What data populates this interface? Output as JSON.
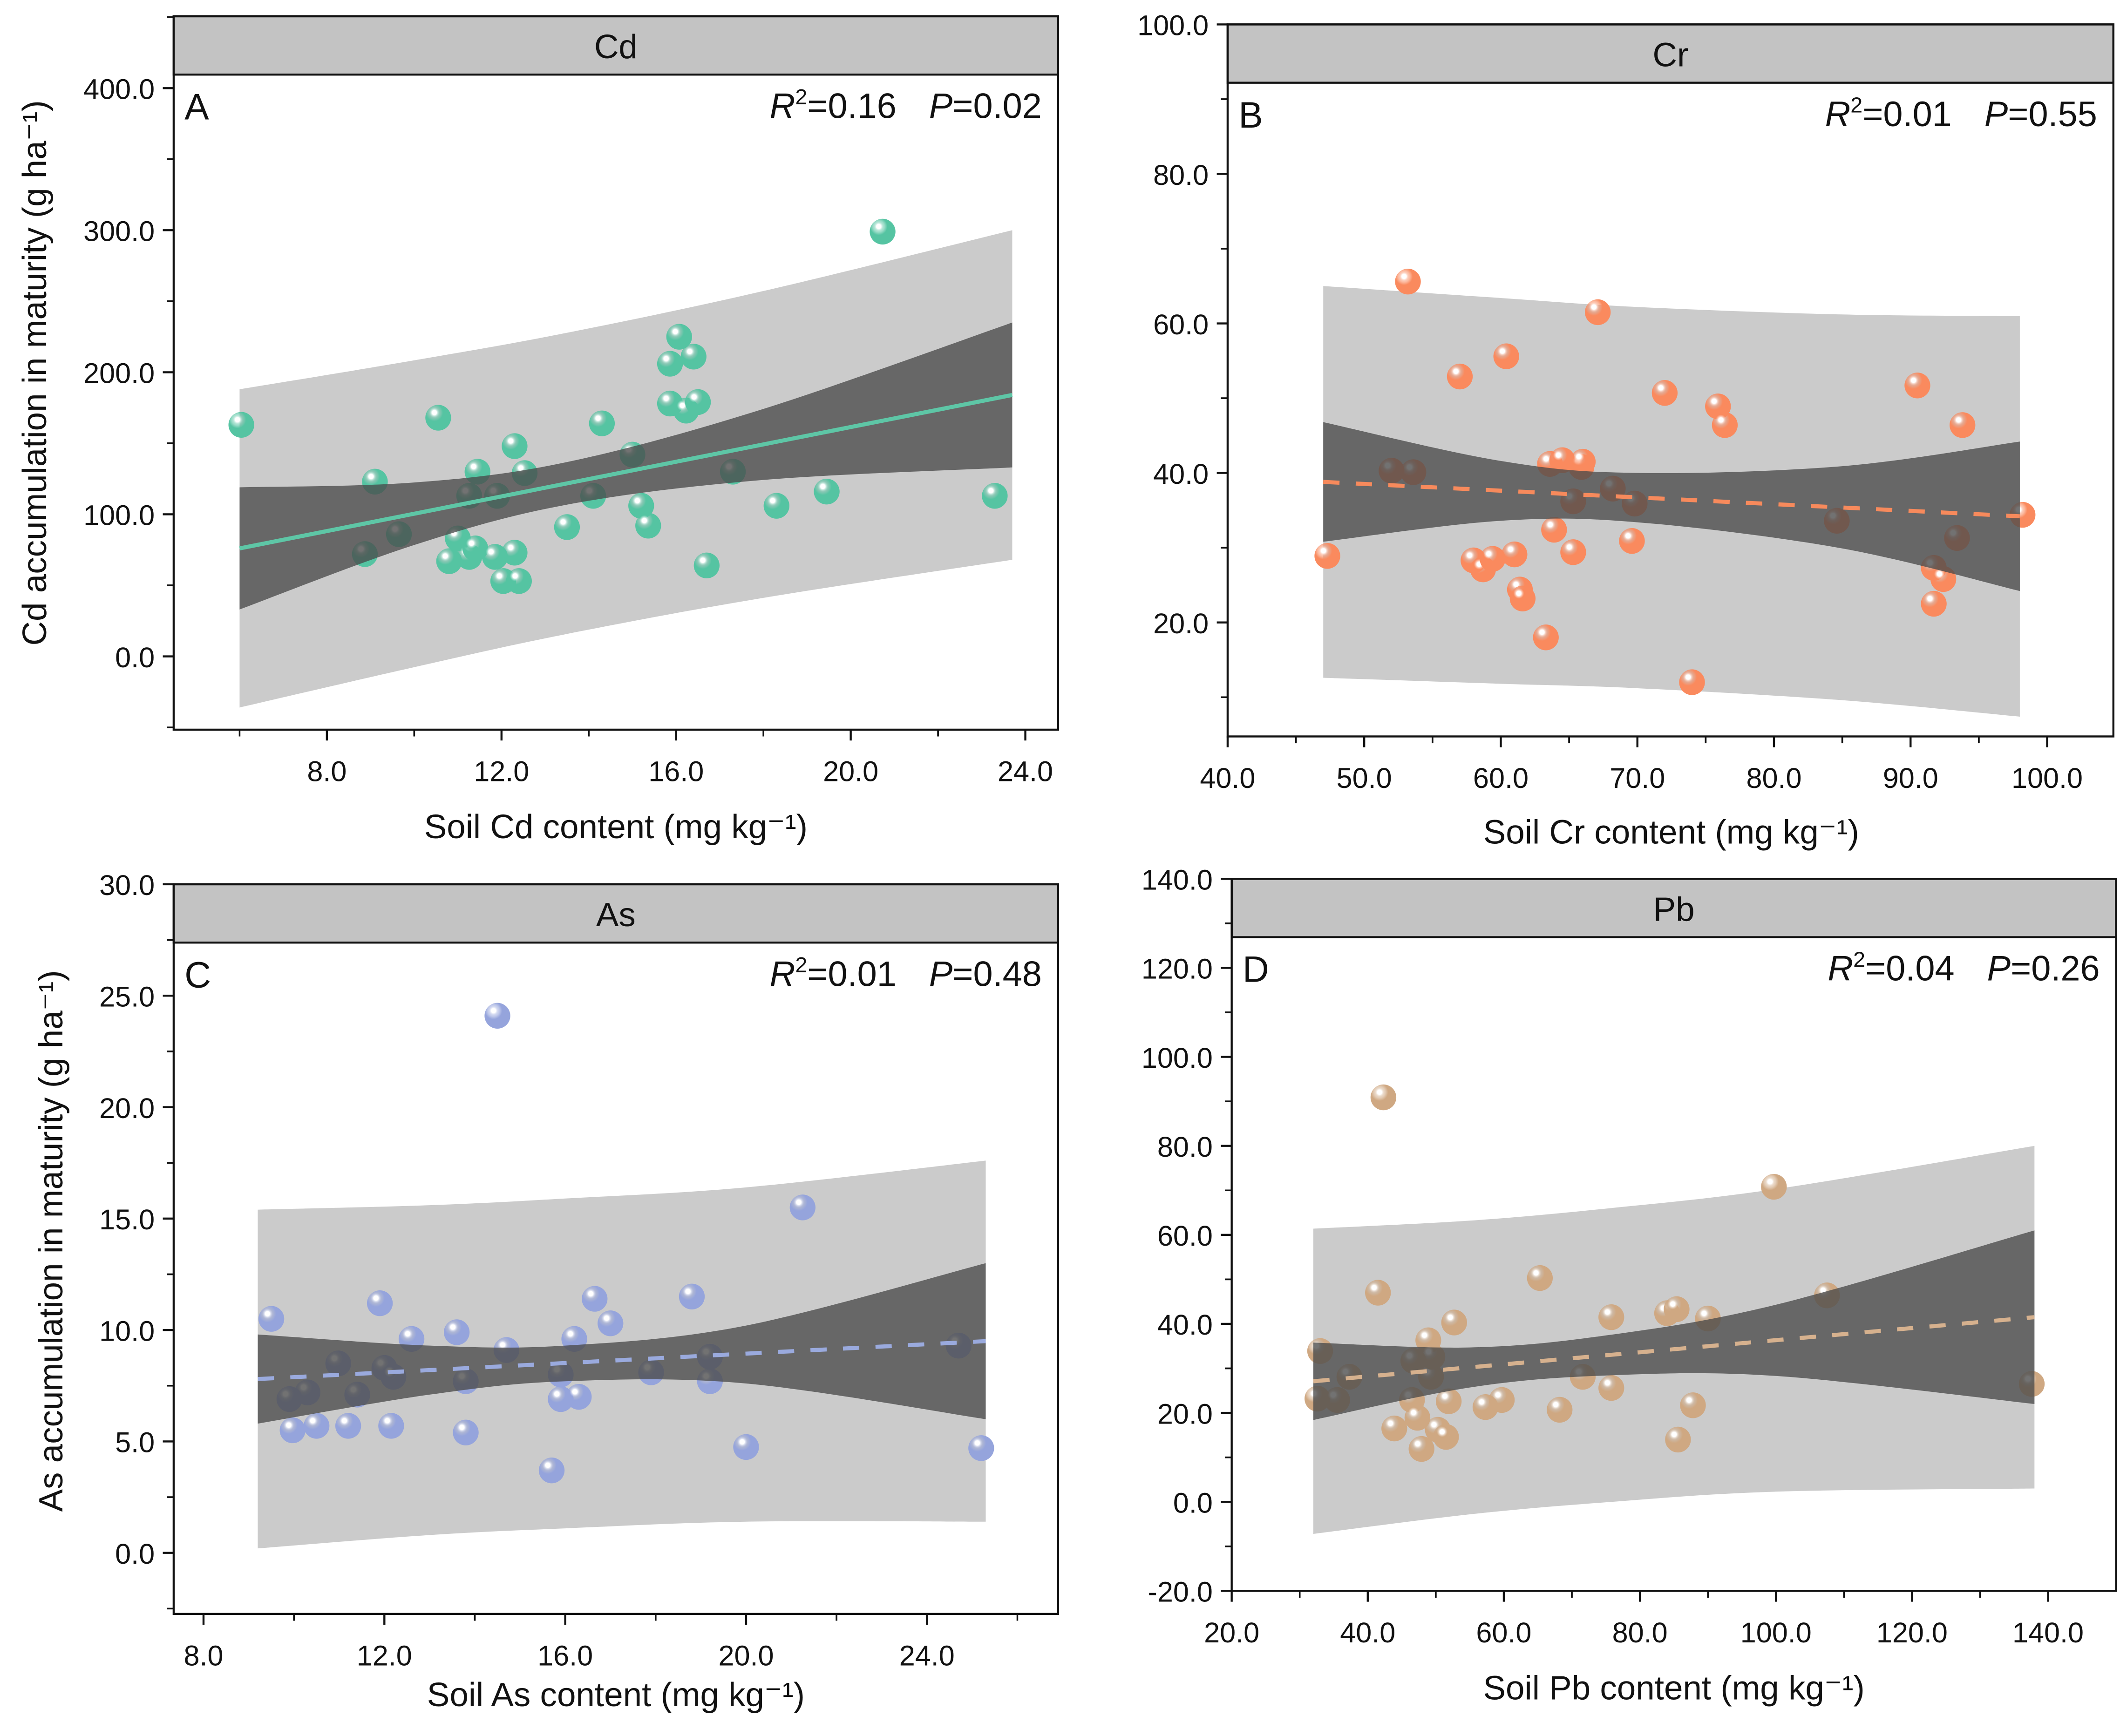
{
  "chart_data": [
    {
      "type": "scatter",
      "panel_letter": "A",
      "title": "Cd",
      "xlabel": "Soil Cd content (mg kg⁻¹)",
      "ylabel": "Cd accumulation in maturity (g ha⁻¹)",
      "xticks": [
        8,
        12,
        16,
        20,
        24
      ],
      "yticks": [
        0,
        100,
        200,
        300,
        400
      ],
      "r2": "0.16",
      "p": "0.02",
      "fit_style": "solid",
      "point_color": "#55c4a2",
      "line_color": "#5ec6a6",
      "fit": [
        [
          6,
          76
        ],
        [
          23.7,
          184
        ]
      ],
      "bands": [
        [
          6,
          -36,
          33,
          119,
          188
        ],
        [
          10,
          -7.6,
          78.4,
          122.4,
          208.4
        ],
        [
          13.5,
          15.8,
          106.8,
          136.8,
          227.8
        ],
        [
          18,
          41.2,
          124.2,
          174.2,
          257.2
        ],
        [
          23.7,
          68,
          133,
          235,
          300
        ]
      ],
      "points": [
        [
          6.04,
          163
        ],
        [
          9.1,
          123
        ],
        [
          8.87,
          72
        ],
        [
          9.65,
          86
        ],
        [
          10.55,
          168
        ],
        [
          11.0,
          83
        ],
        [
          10.8,
          67
        ],
        [
          11.26,
          70
        ],
        [
          11.4,
          76
        ],
        [
          11.26,
          113
        ],
        [
          11.45,
          130
        ],
        [
          11.9,
          113
        ],
        [
          11.85,
          70
        ],
        [
          12.04,
          53
        ],
        [
          12.3,
          148
        ],
        [
          12.3,
          73
        ],
        [
          12.4,
          53
        ],
        [
          12.53,
          129
        ],
        [
          13.5,
          91
        ],
        [
          14.1,
          113
        ],
        [
          14.3,
          164
        ],
        [
          15.0,
          142
        ],
        [
          15.2,
          106
        ],
        [
          15.36,
          92
        ],
        [
          15.86,
          206
        ],
        [
          15.86,
          178
        ],
        [
          16.07,
          225
        ],
        [
          16.23,
          173
        ],
        [
          16.4,
          211
        ],
        [
          16.5,
          179
        ],
        [
          16.7,
          64
        ],
        [
          17.3,
          130
        ],
        [
          18.3,
          106
        ],
        [
          19.45,
          116
        ],
        [
          20.73,
          299
        ],
        [
          23.3,
          113
        ]
      ]
    },
    {
      "type": "scatter",
      "panel_letter": "B",
      "title": "Cr",
      "xlabel": "Soil Cr content (mg kg⁻¹)",
      "ylabel": "",
      "xticks": [
        40,
        50,
        60,
        70,
        80,
        90,
        100
      ],
      "yticks": [
        20,
        40,
        60,
        80,
        100
      ],
      "r2": "0.01",
      "p": "0.55",
      "fit_style": "dashed",
      "point_color": "#fa8a5e",
      "line_color": "#f78a5c",
      "fit": [
        [
          47,
          38.8
        ],
        [
          98,
          34.2
        ]
      ],
      "bands": [
        [
          47,
          12.6,
          30.8,
          46.8,
          65
        ],
        [
          60,
          11.8,
          33.6,
          41.6,
          63.4
        ],
        [
          70,
          11.2,
          33.4,
          40.0,
          62.2
        ],
        [
          85,
          9.6,
          29.9,
          40.9,
          61.2
        ],
        [
          98,
          7.4,
          24.2,
          44.2,
          61
        ]
      ],
      "points": [
        [
          53.2,
          65.6
        ],
        [
          67.1,
          61.5
        ],
        [
          60.4,
          55.6
        ],
        [
          57.0,
          52.9
        ],
        [
          72.0,
          50.7
        ],
        [
          75.9,
          48.9
        ],
        [
          76.4,
          46.4
        ],
        [
          90.5,
          51.7
        ],
        [
          93.8,
          46.4
        ],
        [
          47.3,
          28.9
        ],
        [
          52.0,
          40.3
        ],
        [
          53.6,
          40.1
        ],
        [
          58.0,
          28.3
        ],
        [
          58.7,
          27.1
        ],
        [
          59.4,
          28.5
        ],
        [
          61.0,
          29.1
        ],
        [
          61.4,
          24.4
        ],
        [
          61.6,
          23.2
        ],
        [
          63.3,
          18.0
        ],
        [
          63.6,
          41.2
        ],
        [
          64.5,
          41.7
        ],
        [
          63.9,
          32.4
        ],
        [
          65.3,
          36.2
        ],
        [
          65.3,
          29.4
        ],
        [
          65.9,
          40.8
        ],
        [
          66.0,
          41.5
        ],
        [
          68.2,
          37.9
        ],
        [
          69.8,
          35.9
        ],
        [
          69.6,
          30.9
        ],
        [
          74.0,
          12.0
        ],
        [
          84.6,
          33.6
        ],
        [
          91.7,
          27.3
        ],
        [
          92.4,
          25.8
        ],
        [
          91.7,
          22.5
        ],
        [
          93.4,
          31.3
        ],
        [
          98.2,
          34.4
        ]
      ]
    },
    {
      "type": "scatter",
      "panel_letter": "C",
      "title": "As",
      "xlabel": "Soil As content (mg kg⁻¹)",
      "ylabel": "As accumulation in maturity (g ha⁻¹)",
      "xticks": [
        8,
        12,
        16,
        20,
        24
      ],
      "yticks": [
        0,
        5,
        10,
        15,
        20,
        25,
        30
      ],
      "r2": "0.01",
      "p": "0.48",
      "fit_style": "dashed",
      "point_color": "#95a4dc",
      "line_color": "#9aaade",
      "fit": [
        [
          9.2,
          7.8
        ],
        [
          25.3,
          9.5
        ]
      ],
      "bands": [
        [
          9.2,
          0.2,
          5.8,
          9.8,
          15.4
        ],
        [
          13,
          0.8,
          7.1,
          9.3,
          15.6
        ],
        [
          16,
          1.1,
          7.7,
          9.3,
          15.9
        ],
        [
          20,
          1.4,
          7.6,
          10.2,
          16.4
        ],
        [
          25.3,
          1.4,
          6.0,
          13.0,
          17.6
        ]
      ],
      "points": [
        [
          9.5,
          10.5
        ],
        [
          9.9,
          6.9
        ],
        [
          9.97,
          5.5
        ],
        [
          10.3,
          7.2
        ],
        [
          10.5,
          5.7
        ],
        [
          10.98,
          8.5
        ],
        [
          11.4,
          7.1
        ],
        [
          11.2,
          5.7
        ],
        [
          11.9,
          11.2
        ],
        [
          12.0,
          8.3
        ],
        [
          12.2,
          7.9
        ],
        [
          12.15,
          5.7
        ],
        [
          12.6,
          9.6
        ],
        [
          13.6,
          9.9
        ],
        [
          13.8,
          7.7
        ],
        [
          13.8,
          5.4
        ],
        [
          14.5,
          24.1
        ],
        [
          14.7,
          9.1
        ],
        [
          15.7,
          3.7
        ],
        [
          15.9,
          8.0
        ],
        [
          15.9,
          6.9
        ],
        [
          16.2,
          9.6
        ],
        [
          16.3,
          7.0
        ],
        [
          16.65,
          11.4
        ],
        [
          17.0,
          10.3
        ],
        [
          17.9,
          8.1
        ],
        [
          18.8,
          11.5
        ],
        [
          19.2,
          8.8
        ],
        [
          19.2,
          7.7
        ],
        [
          20.0,
          4.75
        ],
        [
          21.25,
          15.5
        ],
        [
          24.7,
          9.3
        ],
        [
          25.2,
          4.7
        ]
      ]
    },
    {
      "type": "scatter",
      "panel_letter": "D",
      "title": "Pb",
      "xlabel": "Soil Pb content (mg kg⁻¹)",
      "ylabel": "",
      "xticks": [
        20,
        40,
        60,
        80,
        100,
        120,
        140
      ],
      "yticks": [
        -20,
        0,
        20,
        40,
        60,
        80,
        100,
        120,
        140
      ],
      "r2": "0.04",
      "p": "0.26",
      "fit_style": "dashed",
      "point_color": "#cfa882",
      "line_color": "#d6b18e",
      "fit": [
        [
          32,
          27.1
        ],
        [
          138,
          41.5
        ]
      ],
      "bands": [
        [
          32,
          -7.2,
          18.4,
          35.8,
          61.4
        ],
        [
          55,
          -2.8,
          25.7,
          34.7,
          63.2
        ],
        [
          75,
          -0.1,
          28.4,
          37.4,
          65.9
        ],
        [
          100,
          2.3,
          28.3,
          44.3,
          70.3
        ],
        [
          138,
          3,
          22,
          61,
          80
        ]
      ],
      "points": [
        [
          42.3,
          90.9
        ],
        [
          41.5,
          47.0
        ],
        [
          33.0,
          33.9
        ],
        [
          32.6,
          23.2
        ],
        [
          35.5,
          22.9
        ],
        [
          37.3,
          28.1
        ],
        [
          43.9,
          16.5
        ],
        [
          46.5,
          22.9
        ],
        [
          46.7,
          31.7
        ],
        [
          47.3,
          18.9
        ],
        [
          47.9,
          11.9
        ],
        [
          48.9,
          36.3
        ],
        [
          49.3,
          28.1
        ],
        [
          49.5,
          32.6
        ],
        [
          50.3,
          16.2
        ],
        [
          51.5,
          14.6
        ],
        [
          51.9,
          22.6
        ],
        [
          52.7,
          40.3
        ],
        [
          57.3,
          21.3
        ],
        [
          59.7,
          22.9
        ],
        [
          65.3,
          50.3
        ],
        [
          68.2,
          20.7
        ],
        [
          71.6,
          28.1
        ],
        [
          75.8,
          41.5
        ],
        [
          75.8,
          25.6
        ],
        [
          84.0,
          42.4
        ],
        [
          85.4,
          43.3
        ],
        [
          85.6,
          14.0
        ],
        [
          87.8,
          21.7
        ],
        [
          90.0,
          41.2
        ],
        [
          99.7,
          70.8
        ],
        [
          107.5,
          46.4
        ],
        [
          137.6,
          26.5
        ]
      ]
    }
  ]
}
